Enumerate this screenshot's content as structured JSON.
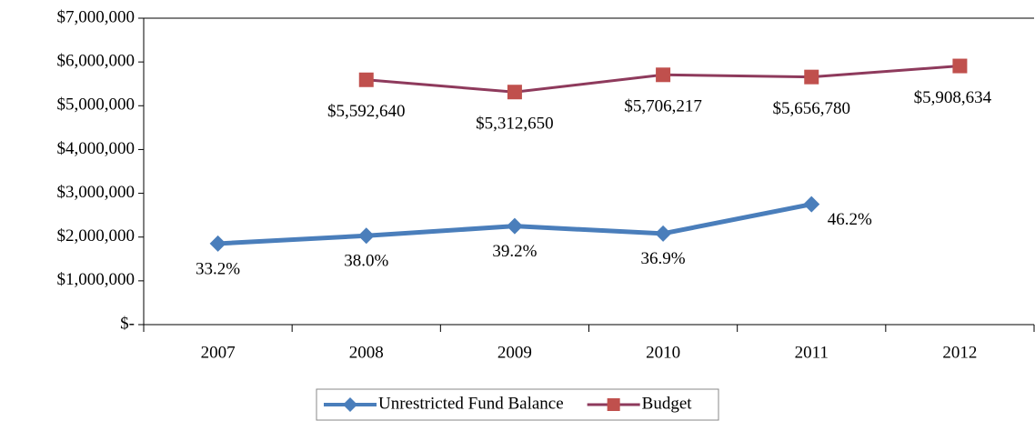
{
  "chart_data": {
    "type": "line",
    "categories": [
      "2007",
      "2008",
      "2009",
      "2010",
      "2011",
      "2012"
    ],
    "series": [
      {
        "name": "Unrestricted Fund Balance",
        "color": "#4a7ebb",
        "marker": "diamond",
        "marker_color": "#4a7ebb",
        "values": [
          1850000,
          2030000,
          2250000,
          2080000,
          2750000,
          null
        ],
        "point_labels": [
          "33.2%",
          "38.0%",
          "39.2%",
          "36.9%",
          "46.2%",
          null
        ]
      },
      {
        "name": "Budget",
        "color": "#8e3a5c",
        "marker": "square",
        "marker_color": "#c0504d",
        "values": [
          null,
          5592640,
          5312650,
          5706217,
          5656780,
          5908634
        ],
        "value_labels": [
          null,
          "$5,592,640",
          "$5,312,650",
          "$5,706,217",
          "$5,656,780",
          "$5,908,634"
        ]
      }
    ],
    "ylim": [
      0,
      7000000
    ],
    "yticks": [
      {
        "value": 0,
        "label": "$-"
      },
      {
        "value": 1000000,
        "label": "$1,000,000"
      },
      {
        "value": 2000000,
        "label": "$2,000,000"
      },
      {
        "value": 3000000,
        "label": "$3,000,000"
      },
      {
        "value": 4000000,
        "label": "$4,000,000"
      },
      {
        "value": 5000000,
        "label": "$5,000,000"
      },
      {
        "value": 6000000,
        "label": "$6,000,000"
      },
      {
        "value": 7000000,
        "label": "$7,000,000"
      }
    ],
    "grid": false,
    "legend": "bottom"
  }
}
